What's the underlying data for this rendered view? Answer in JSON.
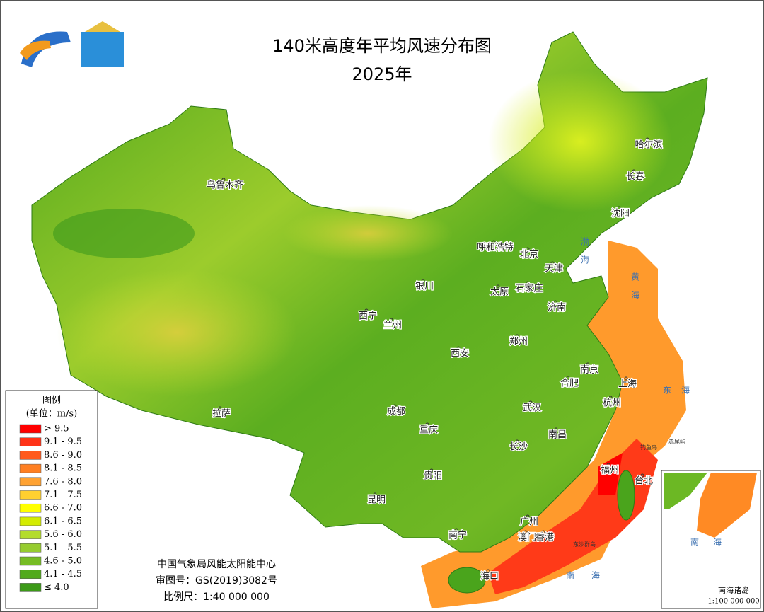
{
  "header": {
    "title": "140米高度年平均风速分布图",
    "year": "2025年"
  },
  "legend": {
    "title": "图例",
    "unit": "(单位：m/s)",
    "items": [
      {
        "label": "> 9.5",
        "color": "#ff0000"
      },
      {
        "label": "9.1 - 9.5",
        "color": "#ff3318"
      },
      {
        "label": "8.6 - 9.0",
        "color": "#ff5a1e"
      },
      {
        "label": "8.1 - 8.5",
        "color": "#ff7f22"
      },
      {
        "label": "7.6 - 8.0",
        "color": "#ffa232"
      },
      {
        "label": "7.1 - 7.5",
        "color": "#ffd030"
      },
      {
        "label": "6.6 - 7.0",
        "color": "#ffff00"
      },
      {
        "label": "6.1 - 6.5",
        "color": "#d4ec00"
      },
      {
        "label": "5.6 - 6.0",
        "color": "#b4dc2c"
      },
      {
        "label": "5.1 - 5.5",
        "color": "#96cc30"
      },
      {
        "label": "4.6 - 5.0",
        "color": "#76bc24"
      },
      {
        "label": "4.1 - 4.5",
        "color": "#52aa1c"
      },
      {
        "label": "≤ 4.0",
        "color": "#3c9a18"
      }
    ]
  },
  "cities": [
    "乌鲁木齐",
    "拉萨",
    "西宁",
    "兰州",
    "银川",
    "呼和浩特",
    "北京",
    "天津",
    "石家庄",
    "太原",
    "济南",
    "郑州",
    "西安",
    "南京",
    "合肥",
    "上海",
    "杭州",
    "武汉",
    "成都",
    "重庆",
    "长沙",
    "南昌",
    "贵阳",
    "福州",
    "台北",
    "昆明",
    "南宁",
    "广州",
    "澳门",
    "香港",
    "海口",
    "哈尔滨",
    "长春",
    "沈阳"
  ],
  "seas": [
    "渤海",
    "黄海",
    "东海",
    "南海"
  ],
  "islands": [
    "钓鱼岛",
    "赤尾屿",
    "东沙群岛"
  ],
  "inset": {
    "sea": "南海",
    "title": "南海诸岛",
    "scale": "1:100 000 000"
  },
  "credits": [
    "中国气象局风能太阳能中心",
    "审图号：GS(2019)3082号",
    "比例尺：1:40 000 000"
  ]
}
